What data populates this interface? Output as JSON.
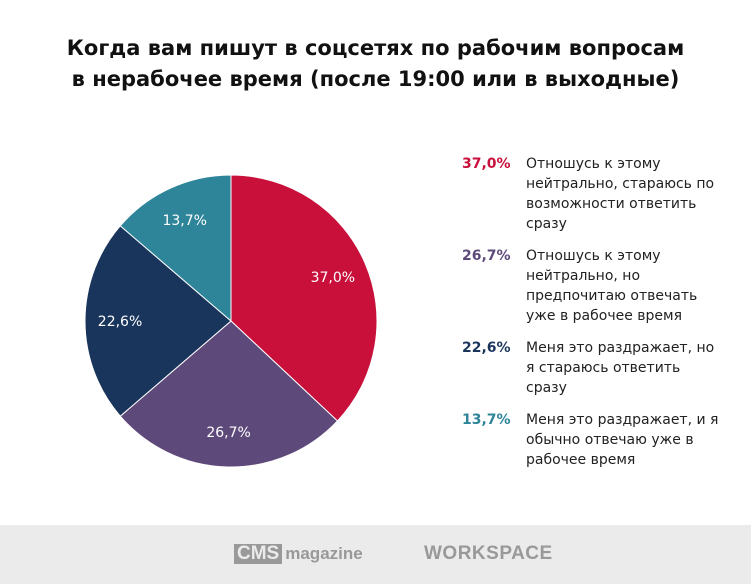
{
  "chart_data": {
    "type": "pie",
    "title": "Когда вам пишут в соцсетях по рабочим вопросам в нерабочее время (после 19:00 или в выходные)",
    "title_lines": [
      "Когда вам пишут в соцсетях по рабочим вопросам",
      "в нерабочее время (после 19:00 или в выходные)"
    ],
    "start_angle": "top",
    "direction": "clockwise",
    "legend_position": "right",
    "slices": [
      {
        "label": "37,0%",
        "value": 37.0,
        "color": "#c8103b",
        "text": "Отношусь к этому нейтрально, стараюсь по возможности ответить сразу"
      },
      {
        "label": "26,7%",
        "value": 26.7,
        "color": "#5e4a7a",
        "text": "Отношусь к этому нейтрально, но предпочитаю отвечать уже в рабочее время"
      },
      {
        "label": "22,6%",
        "value": 22.6,
        "color": "#1a355c",
        "text": "Меня это раздражает, но я стараюсь ответить сразу"
      },
      {
        "label": "13,7%",
        "value": 13.7,
        "color": "#2e8499",
        "text": "Меня это раздражает, и я обычно отвечаю уже в рабочее время"
      }
    ]
  },
  "footer": {
    "logo1_box": "CMS",
    "logo1_text": "magazine",
    "logo2": "WORKSPACE"
  }
}
